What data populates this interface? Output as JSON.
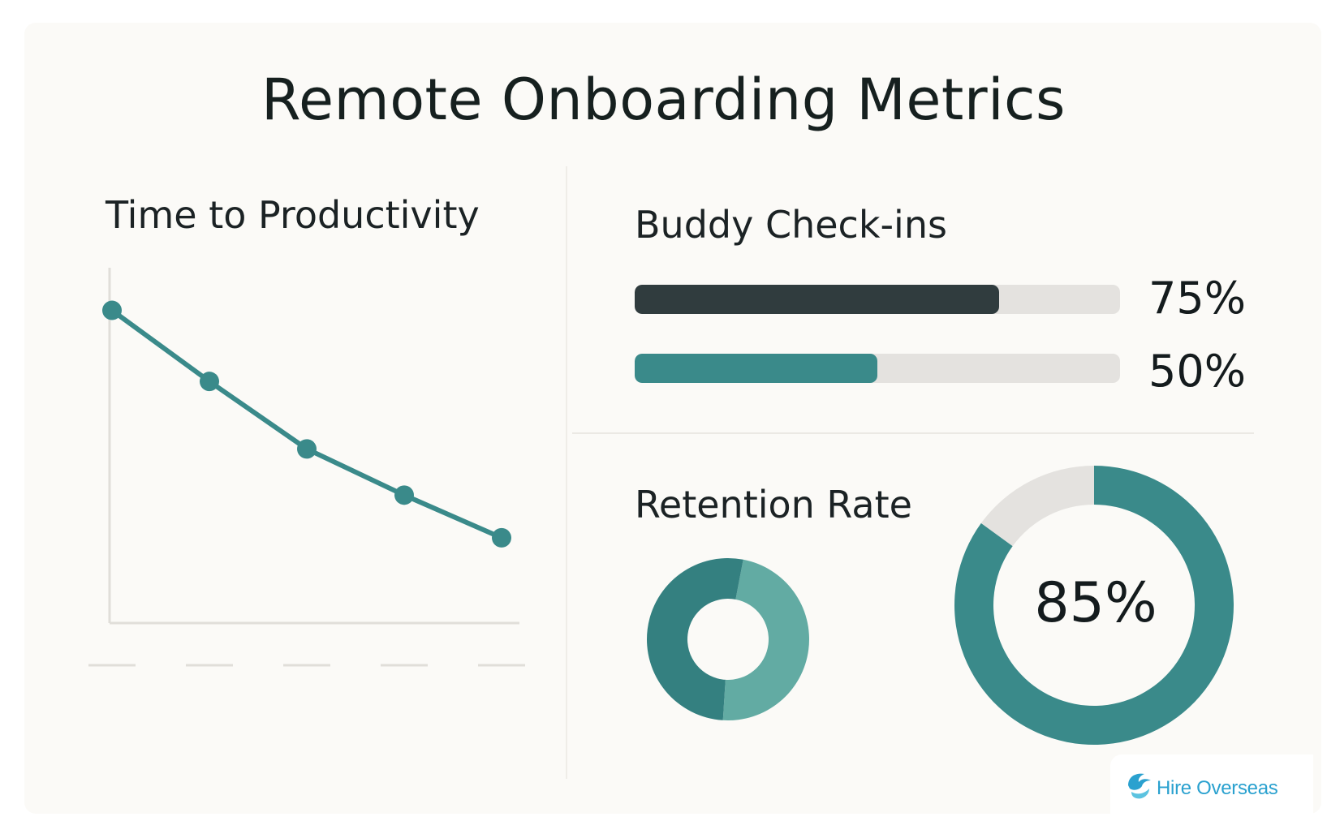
{
  "title": "Remote Onboarding Metrics",
  "colors": {
    "teal": "#3a8a8a",
    "teal_light": "#62aba3",
    "teal_dark": "#348080",
    "dark_bar": "#303c3e",
    "track": "#e4e2df",
    "axis": "#e0ded9"
  },
  "brand": {
    "name": "Hire Overseas",
    "icon": "wave-logo-icon"
  },
  "chart_data": [
    {
      "type": "line",
      "title": "Time to Productivity",
      "x": [
        1,
        2,
        3,
        4,
        5
      ],
      "series": [
        {
          "values": [
            0.88,
            0.68,
            0.49,
            0.36,
            0.24
          ]
        }
      ],
      "ylim": [
        0,
        1
      ],
      "xlabel": "",
      "ylabel": "",
      "grid": false
    },
    {
      "type": "bar",
      "orientation": "horizontal",
      "title": "Buddy Check-ins",
      "categories": [
        "",
        ""
      ],
      "values": [
        75,
        50
      ],
      "value_labels": [
        "75%",
        "50%"
      ],
      "xlim": [
        0,
        100
      ]
    },
    {
      "type": "pie",
      "title": "Retention Rate",
      "donuts": [
        {
          "values": [
            48,
            52
          ],
          "label": ""
        },
        {
          "values": [
            85,
            15
          ],
          "label": "85%"
        }
      ]
    }
  ]
}
